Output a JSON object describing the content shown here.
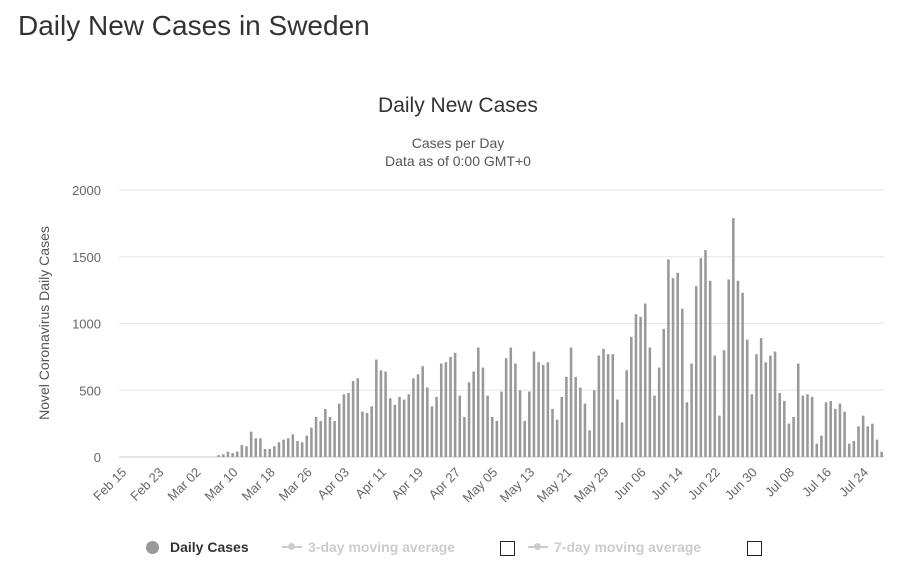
{
  "page": {
    "title": "Daily New Cases in Sweden"
  },
  "colors": {
    "bar": "#999999",
    "grid": "#e6e6e6",
    "text": "#333333",
    "axis_text": "#666666",
    "legend_inactive": "#cccccc"
  },
  "legend": {
    "items": [
      {
        "label": "Daily Cases",
        "active": true
      },
      {
        "label": "3-day moving average",
        "active": false,
        "checkbox": false
      },
      {
        "label": "7-day moving average",
        "active": false,
        "checkbox": false
      }
    ]
  },
  "chart_data": {
    "type": "bar",
    "title": "Daily New Cases",
    "subtitle_lines": [
      "Cases per Day",
      "Data as of 0:00 GMT+0"
    ],
    "xlabel": "",
    "ylabel": "Novel Coronavirus Daily Cases",
    "ylim": [
      0,
      2000
    ],
    "yticks": [
      0,
      500,
      1000,
      1500,
      2000
    ],
    "grid": true,
    "legend_position": "bottom",
    "xtick_labels": [
      "Feb 15",
      "Feb 23",
      "Mar 02",
      "Mar 10",
      "Mar 18",
      "Mar 26",
      "Apr 03",
      "Apr 11",
      "Apr 19",
      "Apr 27",
      "May 05",
      "May 13",
      "May 21",
      "May 29",
      "Jun 06",
      "Jun 14",
      "Jun 22",
      "Jun 30",
      "Jul 08",
      "Jul 16",
      "Jul 24"
    ],
    "series": [
      {
        "name": "Daily Cases",
        "start_date": "Feb 15",
        "values": [
          0,
          0,
          0,
          0,
          0,
          0,
          0,
          0,
          0,
          0,
          0,
          0,
          0,
          0,
          0,
          0,
          0,
          0,
          0,
          0,
          0,
          14,
          20,
          40,
          30,
          40,
          90,
          80,
          190,
          140,
          140,
          60,
          60,
          80,
          110,
          130,
          140,
          170,
          120,
          110,
          160,
          220,
          300,
          270,
          360,
          300,
          270,
          400,
          470,
          480,
          570,
          590,
          340,
          330,
          380,
          730,
          650,
          640,
          440,
          390,
          450,
          430,
          470,
          590,
          620,
          680,
          520,
          380,
          450,
          700,
          710,
          750,
          780,
          460,
          300,
          560,
          640,
          820,
          670,
          460,
          300,
          270,
          490,
          740,
          820,
          700,
          500,
          270,
          490,
          790,
          710,
          690,
          710,
          360,
          280,
          450,
          600,
          820,
          600,
          520,
          400,
          200,
          500,
          760,
          810,
          770,
          770,
          430,
          260,
          650,
          900,
          1070,
          1050,
          1150,
          820,
          460,
          670,
          960,
          1480,
          1340,
          1380,
          1110,
          410,
          700,
          1280,
          1490,
          1550,
          1320,
          760,
          310,
          800,
          1330,
          1790,
          1320,
          1230,
          880,
          470,
          770,
          890,
          710,
          760,
          790,
          480,
          420,
          250,
          300,
          700,
          460,
          470,
          450,
          100,
          160,
          410,
          420,
          360,
          400,
          340,
          100,
          120,
          230,
          310,
          230,
          250,
          130,
          40
        ]
      }
    ]
  }
}
